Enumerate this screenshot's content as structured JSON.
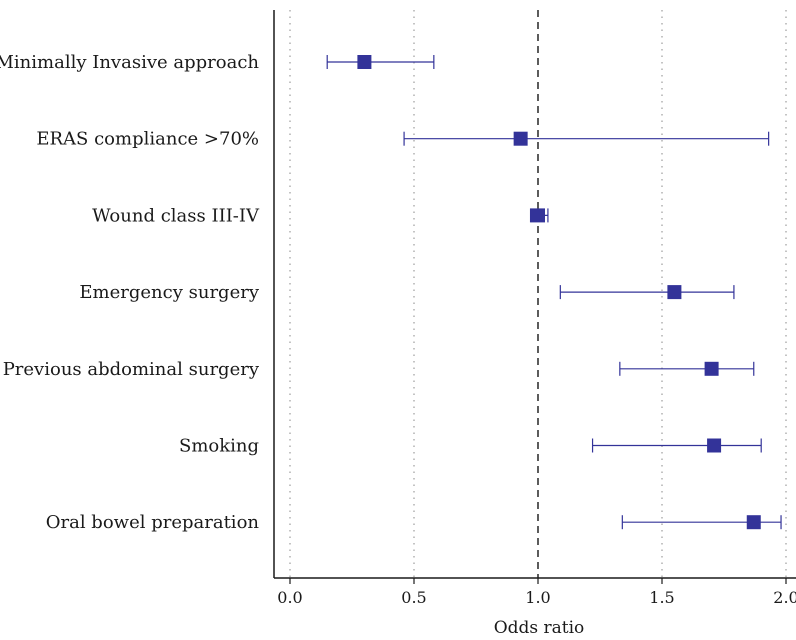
{
  "chart_data": {
    "type": "forest",
    "xlabel": "Odds ratio",
    "xlim": [
      0.0,
      2.0
    ],
    "xticks": [
      "0.0",
      "0.5",
      "1.0",
      "1.5",
      "2.0"
    ],
    "reference_line": 1.0,
    "grid": "vertical dotted",
    "marker_color": "#333399",
    "rows": [
      {
        "label": "Minimally Invasive approach",
        "or": 0.3,
        "lower": 0.15,
        "upper": 0.58
      },
      {
        "label": "ERAS compliance >70%",
        "or": 0.93,
        "lower": 0.46,
        "upper": 1.93
      },
      {
        "label": "Wound class III-IV",
        "or": 1.0,
        "lower": 0.97,
        "upper": 1.04
      },
      {
        "label": "Emergency surgery",
        "or": 1.55,
        "lower": 1.09,
        "upper": 1.79
      },
      {
        "label": "Previous abdominal surgery",
        "or": 1.7,
        "lower": 1.33,
        "upper": 1.87
      },
      {
        "label": "Smoking",
        "or": 1.71,
        "lower": 1.22,
        "upper": 1.9
      },
      {
        "label": "Oral bowel preparation",
        "or": 1.87,
        "lower": 1.34,
        "upper": 1.98
      }
    ]
  }
}
